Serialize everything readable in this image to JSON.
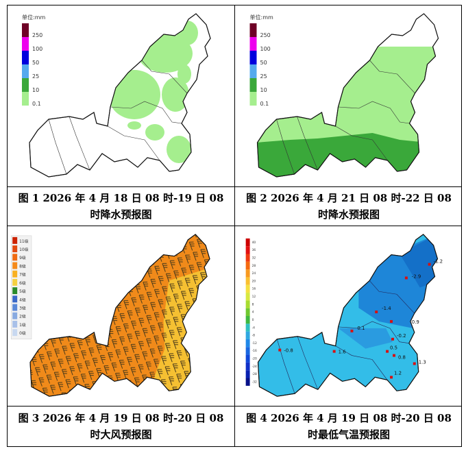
{
  "legend_precip": {
    "title": "单位:mm",
    "levels": [
      "250",
      "100",
      "50",
      "25",
      "10",
      "0.1"
    ],
    "colors": [
      "#6e0026",
      "#ee00ee",
      "#0000dd",
      "#55aaee",
      "#3aa83a",
      "#a5ee8e"
    ]
  },
  "legend_wind": {
    "levels": [
      "11级",
      "10级",
      "9级",
      "8级",
      "7级",
      "6级",
      "5级",
      "4级",
      "3级",
      "2级",
      "1级",
      "0级"
    ],
    "colors": [
      "#cc2200",
      "#e24a10",
      "#f06a10",
      "#f58a1a",
      "#f8b020",
      "#f5d040",
      "#2a8a2a",
      "#3a68c8",
      "#5a88d8",
      "#88aae0",
      "#a8c0e8",
      "#c8d8f0"
    ]
  },
  "legend_temp": {
    "levels": [
      "40",
      "36",
      "32",
      "28",
      "24",
      "20",
      "16",
      "12",
      "8",
      "4",
      "0",
      "-4",
      "-8",
      "-12",
      "-16",
      "-20",
      "-24",
      "-28",
      "-32"
    ],
    "colors": [
      "#cc0000",
      "#e21010",
      "#f03a10",
      "#f56a10",
      "#f89a20",
      "#fac030",
      "#f5e040",
      "#d8e840",
      "#a8dc30",
      "#70c830",
      "#40b840",
      "#30c0c0",
      "#30a8e0",
      "#2088e8",
      "#1a68e0",
      "#1048d8",
      "#1030c8",
      "#0820b0",
      "#061088"
    ]
  },
  "temp_labels": [
    "-1.2",
    "-2.9",
    "-1.4",
    "0.1",
    "0.9",
    "-0.2",
    "-0.8",
    "1.6",
    "0.5",
    "0.8",
    "1.3",
    "1.2"
  ],
  "captions": {
    "fig1": {
      "line1": "图 1   2026 年 4 月 18 日 08 时-19 日 08",
      "line2": "时降水预报图"
    },
    "fig2": {
      "line1": "图 2   2026 年 4 月 21 日 08 时-22 日 08",
      "line2": "时降水预报图"
    },
    "fig3": {
      "line1": "图 3   2026 年 4 月 19 日 08 时-20 日 08",
      "line2": "时大风预报图"
    },
    "fig4": {
      "line1": "图 4   2026 年 4 月 19 日 08 时-20 日 08",
      "line2": "时最低气温预报图"
    }
  },
  "colors": {
    "light_green": "#a5ee8e",
    "mid_green": "#3aa83a",
    "wind_orange": "#f08a1a",
    "wind_yellow": "#f5c032",
    "temp_blue": "#2a9be0",
    "temp_cyan": "#33bde8",
    "border": "#333333"
  }
}
